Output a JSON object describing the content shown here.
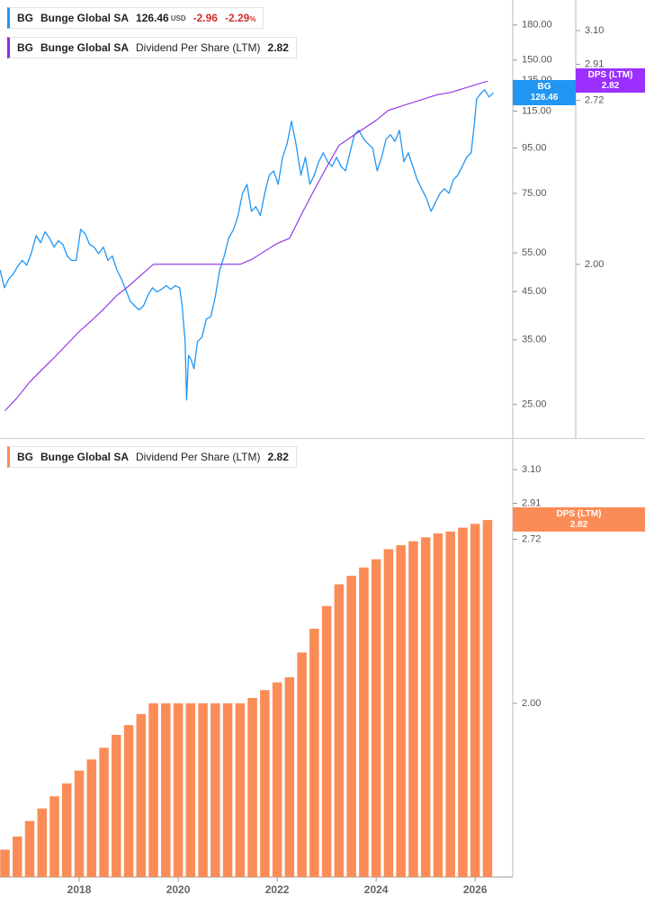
{
  "chart_data": [
    {
      "type": "line",
      "legend": [
        {
          "ticker": "BG",
          "company": "Bunge Global SA",
          "currency": "USD",
          "change": -2.96,
          "change_pct": -2.29,
          "pct_sign": "%"
        },
        {
          "ticker": "BG",
          "company": "Bunge Global SA",
          "metric": "Dividend Per Share (LTM)"
        }
      ],
      "series": [
        {
          "name": "BG",
          "color": "#2196f3",
          "x": [
            2016.4,
            2016.49,
            2016.58,
            2016.67,
            2016.76,
            2016.85,
            2016.94,
            2017.03,
            2017.13,
            2017.22,
            2017.31,
            2017.4,
            2017.49,
            2017.58,
            2017.67,
            2017.76,
            2017.85,
            2017.94,
            2018.03,
            2018.12,
            2018.21,
            2018.3,
            2018.39,
            2018.49,
            2018.58,
            2018.67,
            2018.76,
            2018.85,
            2018.94,
            2019.03,
            2019.12,
            2019.21,
            2019.3,
            2019.39,
            2019.48,
            2019.57,
            2019.66,
            2019.76,
            2019.85,
            2019.94,
            2020.03,
            2020.08,
            2020.14,
            2020.17,
            2020.21,
            2020.26,
            2020.32,
            2020.39,
            2020.48,
            2020.57,
            2020.66,
            2020.75,
            2020.84,
            2020.93,
            2021.02,
            2021.12,
            2021.21,
            2021.3,
            2021.39,
            2021.48,
            2021.57,
            2021.66,
            2021.75,
            2021.84,
            2021.93,
            2022.02,
            2022.11,
            2022.2,
            2022.29,
            2022.38,
            2022.48,
            2022.57,
            2022.66,
            2022.75,
            2022.84,
            2022.93,
            2023.02,
            2023.11,
            2023.2,
            2023.29,
            2023.38,
            2023.47,
            2023.56,
            2023.65,
            2023.75,
            2023.84,
            2023.93,
            2024.02,
            2024.11,
            2024.2,
            2024.29,
            2024.38,
            2024.47,
            2024.56,
            2024.65,
            2024.74,
            2024.83,
            2024.92,
            2025.01,
            2025.11,
            2025.2,
            2025.29,
            2025.38,
            2025.47,
            2025.56,
            2025.65,
            2025.74,
            2025.83,
            2025.92,
            2025.98,
            2026.03,
            2026.1,
            2026.19,
            2026.28,
            2026.37
          ],
          "values": [
            50.4,
            45.9,
            48.1,
            49.3,
            51.4,
            52.9,
            51.6,
            54.8,
            60.2,
            58.0,
            61.4,
            59.4,
            56.7,
            58.6,
            57.5,
            54.1,
            52.9,
            52.9,
            62.2,
            60.8,
            57.5,
            56.7,
            54.8,
            56.7,
            52.9,
            54.1,
            50.4,
            48.1,
            45.5,
            42.8,
            41.8,
            40.9,
            41.8,
            44.2,
            45.9,
            44.9,
            45.5,
            46.4,
            45.5,
            46.4,
            45.9,
            41.8,
            34.7,
            25.6,
            32.3,
            31.6,
            30.1,
            34.7,
            35.5,
            39.0,
            39.5,
            43.8,
            50.4,
            54.1,
            59.4,
            62.2,
            66.8,
            75.0,
            78.6,
            68.3,
            70.0,
            66.8,
            75.0,
            82.4,
            84.3,
            78.6,
            90.5,
            97.0,
            109.1,
            97.0,
            82.4,
            90.5,
            78.6,
            82.4,
            88.4,
            92.6,
            88.4,
            86.3,
            90.5,
            86.3,
            84.3,
            92.6,
            101.7,
            104.1,
            99.4,
            97.0,
            94.8,
            84.3,
            90.5,
            99.4,
            101.7,
            98.2,
            104.1,
            88.4,
            92.6,
            86.3,
            80.5,
            76.8,
            73.3,
            68.3,
            71.6,
            75.0,
            76.8,
            75.0,
            80.5,
            82.4,
            86.3,
            90.5,
            92.6,
            106.6,
            122.6,
            125.5,
            128.5,
            123.8,
            126.46
          ]
        },
        {
          "name": "DPS (LTM)",
          "color": "#8b2ee6",
          "axis": "y2",
          "x": [
            2016.5,
            2016.75,
            2017,
            2017.25,
            2017.5,
            2017.75,
            2018,
            2018.25,
            2018.5,
            2018.75,
            2019,
            2019.25,
            2019.5,
            2019.75,
            2020,
            2020.25,
            2020.5,
            2020.75,
            2021,
            2021.25,
            2021.5,
            2021.75,
            2022,
            2022.25,
            2022.5,
            2022.75,
            2023,
            2023.25,
            2023.5,
            2023.75,
            2024,
            2024.25,
            2024.5,
            2024.75,
            2025,
            2025.25,
            2025.5,
            2025.75,
            2026,
            2026.25
          ],
          "values": [
            1.52,
            1.558,
            1.604,
            1.642,
            1.68,
            1.721,
            1.763,
            1.8,
            1.84,
            1.885,
            1.92,
            1.96,
            2,
            2,
            2,
            2,
            2,
            2,
            2,
            2,
            2.02,
            2.05,
            2.08,
            2.1,
            2.2,
            2.3,
            2.4,
            2.5,
            2.54,
            2.58,
            2.62,
            2.67,
            2.69,
            2.71,
            2.73,
            2.75,
            2.76,
            2.78,
            2.8,
            2.82
          ]
        }
      ],
      "xlim": [
        2016.4,
        2026.76
      ],
      "ylim": [
        21,
        205
      ],
      "ylog": true,
      "yticks": [
        {
          "value": 180,
          "label": "180.00"
        },
        {
          "value": 150,
          "label": "150.00"
        },
        {
          "value": 135,
          "label": "135.00"
        },
        {
          "value": 115,
          "label": "115.00"
        },
        {
          "value": 95,
          "label": "95.00"
        },
        {
          "value": 75,
          "label": "75.00"
        },
        {
          "value": 55,
          "label": "55.00"
        },
        {
          "value": 45,
          "label": "45.00"
        },
        {
          "value": 35,
          "label": "35.00"
        },
        {
          "value": 25,
          "label": "25.00"
        }
      ],
      "y2lim": [
        1.444,
        3.283
      ],
      "y2log": true,
      "y2ticks": [
        {
          "value": 3.1,
          "label": "3.10"
        },
        2.91,
        2.72,
        {
          "value": 2,
          "label": "2.00"
        }
      ]
    },
    {
      "type": "bar",
      "legend": [
        {
          "ticker": "BG",
          "company": "Bunge Global SA",
          "metric": "Dividend Per Share (LTM)"
        }
      ],
      "series": [
        {
          "name": "DPS (LTM)",
          "color": "#fb8c57",
          "x": [
            2016.5,
            2016.75,
            2017,
            2017.25,
            2017.5,
            2017.75,
            2018,
            2018.25,
            2018.5,
            2018.75,
            2019,
            2019.25,
            2019.5,
            2019.75,
            2020,
            2020.25,
            2020.5,
            2020.75,
            2021,
            2021.25,
            2021.5,
            2021.75,
            2022,
            2022.25,
            2022.5,
            2022.75,
            2023,
            2023.25,
            2023.5,
            2023.75,
            2024,
            2024.25,
            2024.5,
            2024.75,
            2025,
            2025.25,
            2025.5,
            2025.75,
            2026,
            2026.25
          ],
          "values": [
            1.52,
            1.558,
            1.604,
            1.642,
            1.68,
            1.721,
            1.763,
            1.8,
            1.84,
            1.885,
            1.92,
            1.96,
            2,
            2,
            2,
            2,
            2,
            2,
            2,
            2,
            2.02,
            2.05,
            2.08,
            2.1,
            2.2,
            2.3,
            2.4,
            2.5,
            2.54,
            2.58,
            2.62,
            2.67,
            2.69,
            2.71,
            2.73,
            2.75,
            2.76,
            2.78,
            2.8,
            2.82
          ]
        }
      ],
      "xlim": [
        2016.4,
        2026.76
      ],
      "xticks": [
        2018,
        2020,
        2022,
        2024,
        2026
      ],
      "ylim": [
        1.444,
        3.283
      ],
      "ylog": true,
      "yticks": [
        {
          "value": 3.1,
          "label": "3.10"
        },
        2.91,
        2.72,
        {
          "value": 2,
          "label": "2.00"
        }
      ]
    }
  ]
}
